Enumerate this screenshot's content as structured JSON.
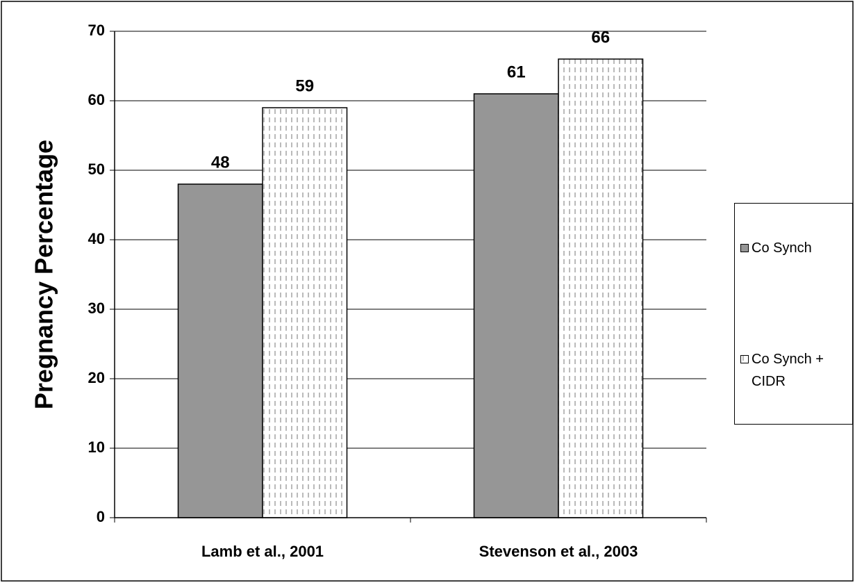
{
  "chart_data": {
    "type": "bar",
    "y_label": "Pregnancy Percentage",
    "categories": [
      "Lamb et al., 2001",
      "Stevenson et al., 2003"
    ],
    "series": [
      {
        "name": "Co Synch",
        "color": "#969696",
        "values": [
          48,
          61
        ]
      },
      {
        "name": "Co Synch + CIDR",
        "color": "#ffffff",
        "pattern": "vertical-dashes",
        "values": [
          59,
          66
        ]
      }
    ],
    "ylim": [
      0,
      70
    ],
    "yticks": [
      0,
      10,
      20,
      30,
      40,
      50,
      60,
      70
    ],
    "grid": true,
    "legend": "right"
  }
}
